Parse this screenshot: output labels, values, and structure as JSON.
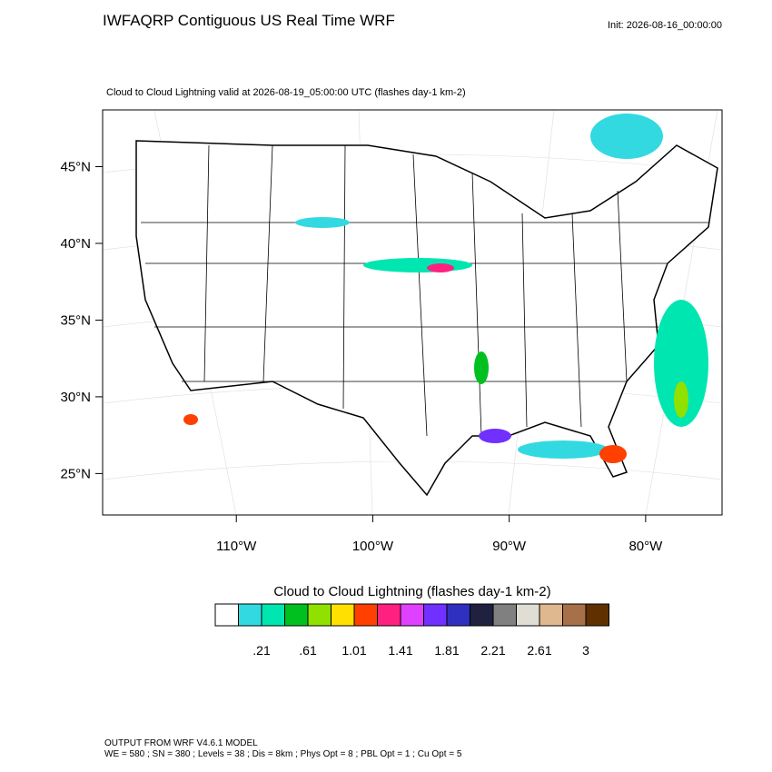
{
  "chart_data": {
    "type": "map",
    "title": "IWFAQRP Contiguous US Real Time WRF",
    "init": "Init: 2026-08-16_00:00:00",
    "subtitle": "Cloud to Cloud Lightning valid at 2026-08-19_05:00:00 UTC   (flashes day-1 km-2)",
    "xlim": [
      -119.8,
      -74.4
    ],
    "ylim": [
      22.3,
      48.7
    ],
    "xticks": [
      {
        "value": -110,
        "label": "110°W"
      },
      {
        "value": -100,
        "label": "100°W"
      },
      {
        "value": -90,
        "label": "90°W"
      },
      {
        "value": -80,
        "label": "80°W"
      }
    ],
    "yticks": [
      {
        "value": 45,
        "label": "45°N"
      },
      {
        "value": 40,
        "label": "40°N"
      },
      {
        "value": 35,
        "label": "35°N"
      },
      {
        "value": 30,
        "label": "30°N"
      },
      {
        "value": 25,
        "label": "25°N"
      }
    ],
    "colorbar": {
      "title": "Cloud to Cloud Lightning  (flashes day-1 km-2)",
      "colors": [
        "#ffffff",
        "#33d9e0",
        "#00e6b0",
        "#00c020",
        "#90e000",
        "#ffe000",
        "#ff4000",
        "#ff2080",
        "#e040ff",
        "#7030ff",
        "#3030c0",
        "#202040",
        "#808080",
        "#e0ddd5",
        "#e0b890",
        "#a87048",
        "#603000"
      ],
      "labels": [
        ".21",
        ".61",
        "1.01",
        "1.41",
        "1.81",
        "2.21",
        "2.61",
        "3"
      ]
    },
    "footer": [
      "OUTPUT FROM WRF V4.6.1 MODEL",
      "WE = 580 ; SN = 380 ; Levels = 38 ; Dis = 8km ; Phys Opt = 8 ; PBL Opt = 1 ; Cu Opt = 5"
    ]
  }
}
